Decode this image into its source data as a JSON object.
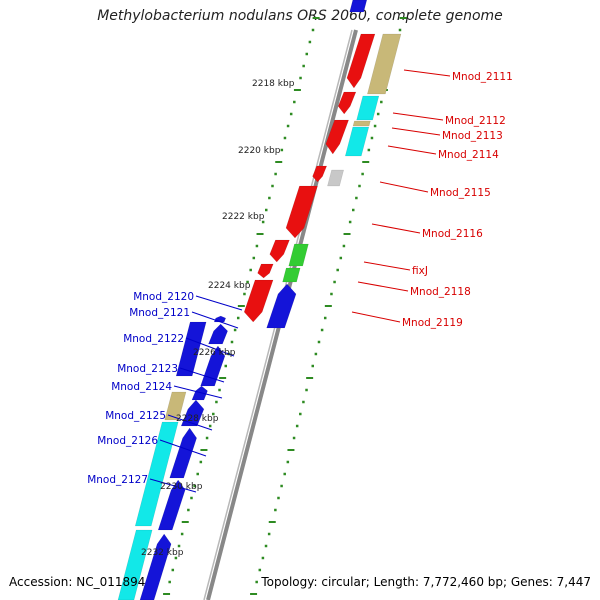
{
  "title": "Methylobacterium nodulans ORS 2060, complete genome",
  "accession": "Accession: NC_011894",
  "topology": "Topology: circular; Length: 7,772,460 bp; Genes: 7,447",
  "colors": {
    "backbone": "#888888",
    "tick": "#2e8b22",
    "forward_gene": "#e81010",
    "reverse_gene": "#1414d8",
    "label_red": "#d80000",
    "label_blue": "#0000c8",
    "cyan": "#12e8e8",
    "khaki": "#c8b878",
    "green": "#33cc33",
    "grey": "#c8c8c8"
  },
  "kbp_labels": [
    {
      "text": "2218 kbp"
    },
    {
      "text": "2220 kbp"
    },
    {
      "text": "2222 kbp"
    },
    {
      "text": "2224 kbp"
    },
    {
      "text": "2226 kbp"
    },
    {
      "text": "2228 kbp"
    },
    {
      "text": "2230 kbp"
    },
    {
      "text": "2232 kbp"
    }
  ],
  "right_labels": [
    {
      "text": "Mnod_2111"
    },
    {
      "text": "Mnod_2112"
    },
    {
      "text": "Mnod_2113"
    },
    {
      "text": "Mnod_2114"
    },
    {
      "text": "Mnod_2115"
    },
    {
      "text": "Mnod_2116"
    },
    {
      "text": "fixJ"
    },
    {
      "text": "Mnod_2118"
    },
    {
      "text": "Mnod_2119"
    }
  ],
  "left_labels": [
    {
      "text": "Mnod_2120"
    },
    {
      "text": "Mnod_2121"
    },
    {
      "text": "Mnod_2122"
    },
    {
      "text": "Mnod_2123"
    },
    {
      "text": "Mnod_2124"
    },
    {
      "text": "Mnod_2125"
    },
    {
      "text": "Mnod_2126"
    },
    {
      "text": "Mnod_2127"
    }
  ]
}
